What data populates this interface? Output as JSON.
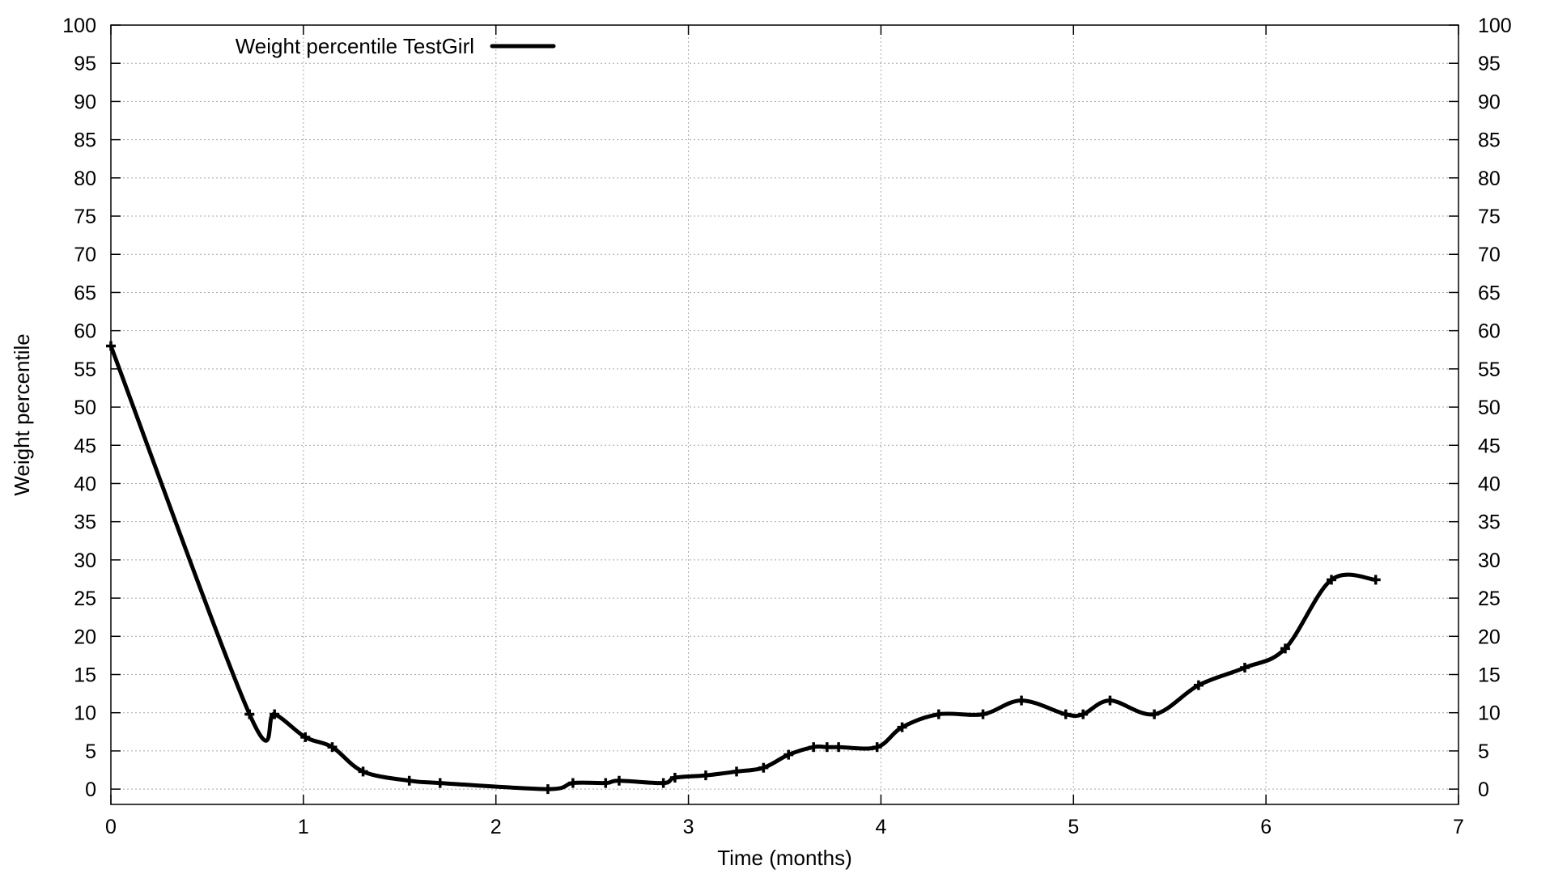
{
  "chart_data": {
    "type": "line",
    "title": "",
    "xlabel": "Time (months)",
    "ylabel": "Weight percentile",
    "xlim": [
      0,
      7
    ],
    "ylim": [
      -2,
      100
    ],
    "x_ticks": [
      0,
      1,
      2,
      3,
      4,
      5,
      6,
      7
    ],
    "y_ticks": [
      0,
      5,
      10,
      15,
      20,
      25,
      30,
      35,
      40,
      45,
      50,
      55,
      60,
      65,
      70,
      75,
      80,
      85,
      90,
      95,
      100
    ],
    "right_axis_mirrored": true,
    "grid": true,
    "legend_position": "top-left",
    "series": [
      {
        "name": "Weight percentile  TestGirl",
        "color": "#000000",
        "marker": "plus",
        "smoothed": true,
        "x": [
          0,
          0.72,
          0.85,
          1.01,
          1.15,
          1.31,
          1.55,
          1.71,
          2.27,
          2.4,
          2.57,
          2.64,
          2.87,
          2.93,
          3.09,
          3.25,
          3.39,
          3.52,
          3.65,
          3.72,
          3.78,
          3.98,
          4.11,
          4.3,
          4.53,
          4.73,
          4.96,
          5.05,
          5.19,
          5.42,
          5.65,
          5.89,
          6.1,
          6.34,
          6.57
        ],
        "y": [
          58,
          9.8,
          9.8,
          6.8,
          5.5,
          2.3,
          1.1,
          0.8,
          0.0,
          0.8,
          0.8,
          1.1,
          0.8,
          1.5,
          1.8,
          2.3,
          2.8,
          4.5,
          5.5,
          5.5,
          5.5,
          5.5,
          8.1,
          9.8,
          9.8,
          11.6,
          9.8,
          9.8,
          11.6,
          9.8,
          13.6,
          15.9,
          18.4,
          27.4,
          27.4
        ]
      }
    ]
  }
}
